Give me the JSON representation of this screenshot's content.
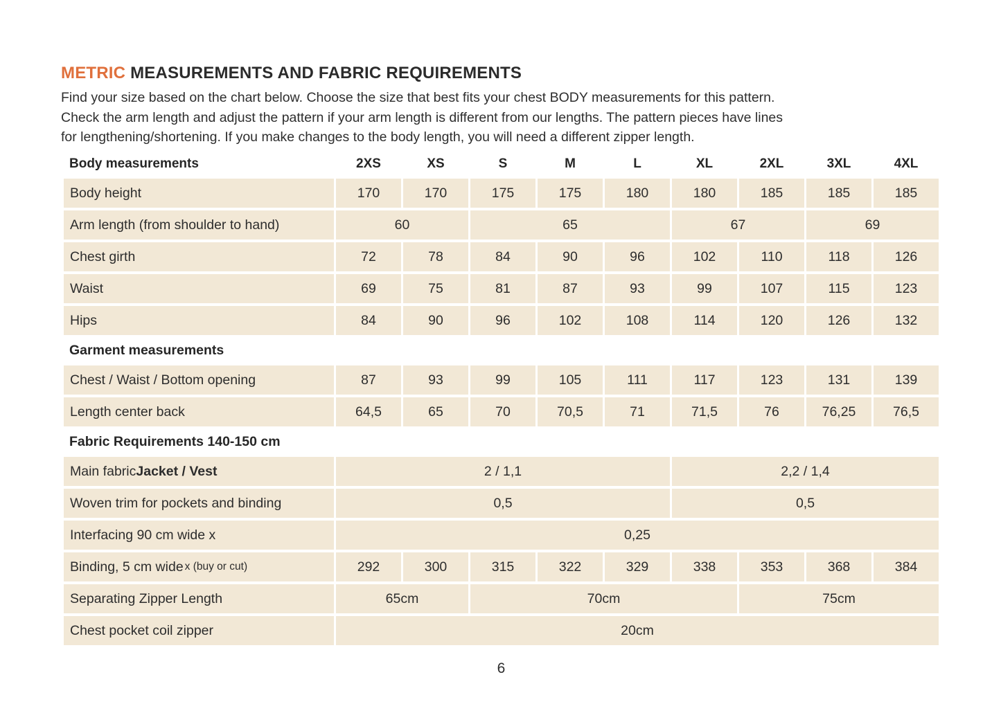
{
  "header": {
    "title_accent": "METRIC",
    "title_rest": " MEASUREMENTS AND FABRIC REQUIREMENTS"
  },
  "intro": {
    "lines": [
      "Find your size based on the chart below. Choose the size that best fits your chest BODY measurements for this pattern.",
      "Check the arm length and adjust the pattern if your arm length is different from our lengths. The pattern pieces have lines",
      "for lengthening/shortening. If you make changes to the body length, you will need a different zipper length."
    ]
  },
  "colors": {
    "accent_orange": "#E0703C",
    "cell_background": "#F2E8D6",
    "text": "#2D2D2D"
  },
  "table": {
    "header": {
      "label": "Body measurements",
      "sizes": [
        "2XS",
        "XS",
        "S",
        "M",
        "L",
        "XL",
        "2XL",
        "3XL",
        "4XL"
      ]
    },
    "rows": [
      {
        "type": "data",
        "label_parts": [
          {
            "text": "Body height"
          }
        ],
        "cells": [
          {
            "text": "170",
            "span": 1
          },
          {
            "text": "170",
            "span": 1
          },
          {
            "text": "175",
            "span": 1
          },
          {
            "text": "175",
            "span": 1
          },
          {
            "text": "180",
            "span": 1
          },
          {
            "text": "180",
            "span": 1
          },
          {
            "text": "185",
            "span": 1
          },
          {
            "text": "185",
            "span": 1
          },
          {
            "text": "185",
            "span": 1
          }
        ]
      },
      {
        "type": "data",
        "label_parts": [
          {
            "text": "Arm length (from shoulder to hand)"
          }
        ],
        "cells": [
          {
            "text": "60",
            "span": 2
          },
          {
            "text": "65",
            "span": 3
          },
          {
            "text": "67",
            "span": 2
          },
          {
            "text": "69",
            "span": 2
          }
        ]
      },
      {
        "type": "data",
        "label_parts": [
          {
            "text": "Chest girth"
          }
        ],
        "cells": [
          {
            "text": "72",
            "span": 1
          },
          {
            "text": "78",
            "span": 1
          },
          {
            "text": "84",
            "span": 1
          },
          {
            "text": "90",
            "span": 1
          },
          {
            "text": "96",
            "span": 1
          },
          {
            "text": "102",
            "span": 1
          },
          {
            "text": "110",
            "span": 1
          },
          {
            "text": "118",
            "span": 1
          },
          {
            "text": "126",
            "span": 1
          }
        ]
      },
      {
        "type": "data",
        "label_parts": [
          {
            "text": "Waist"
          }
        ],
        "cells": [
          {
            "text": "69",
            "span": 1
          },
          {
            "text": "75",
            "span": 1
          },
          {
            "text": "81",
            "span": 1
          },
          {
            "text": "87",
            "span": 1
          },
          {
            "text": "93",
            "span": 1
          },
          {
            "text": "99",
            "span": 1
          },
          {
            "text": "107",
            "span": 1
          },
          {
            "text": "115",
            "span": 1
          },
          {
            "text": "123",
            "span": 1
          }
        ]
      },
      {
        "type": "data",
        "label_parts": [
          {
            "text": "Hips"
          }
        ],
        "cells": [
          {
            "text": "84",
            "span": 1
          },
          {
            "text": "90",
            "span": 1
          },
          {
            "text": "96",
            "span": 1
          },
          {
            "text": "102",
            "span": 1
          },
          {
            "text": "108",
            "span": 1
          },
          {
            "text": "114",
            "span": 1
          },
          {
            "text": "120",
            "span": 1
          },
          {
            "text": "126",
            "span": 1
          },
          {
            "text": "132",
            "span": 1
          }
        ]
      },
      {
        "type": "section",
        "label_parts": [
          {
            "text": "Garment measurements"
          }
        ]
      },
      {
        "type": "data",
        "label_parts": [
          {
            "text": "Chest / Waist / Bottom opening"
          }
        ],
        "cells": [
          {
            "text": "87",
            "span": 1
          },
          {
            "text": "93",
            "span": 1
          },
          {
            "text": "99",
            "span": 1
          },
          {
            "text": "105",
            "span": 1
          },
          {
            "text": "111",
            "span": 1
          },
          {
            "text": "117",
            "span": 1
          },
          {
            "text": "123",
            "span": 1
          },
          {
            "text": "131",
            "span": 1
          },
          {
            "text": "139",
            "span": 1
          }
        ]
      },
      {
        "type": "data",
        "label_parts": [
          {
            "text": "Length center back"
          }
        ],
        "cells": [
          {
            "text": "64,5",
            "span": 1
          },
          {
            "text": "65",
            "span": 1
          },
          {
            "text": "70",
            "span": 1
          },
          {
            "text": "70,5",
            "span": 1
          },
          {
            "text": "71",
            "span": 1
          },
          {
            "text": "71,5",
            "span": 1
          },
          {
            "text": "76",
            "span": 1
          },
          {
            "text": "76,25",
            "span": 1
          },
          {
            "text": "76,5",
            "span": 1
          }
        ]
      },
      {
        "type": "section",
        "label_parts": [
          {
            "text": "Fabric Requirements 140-150 cm"
          }
        ]
      },
      {
        "type": "data",
        "label_parts": [
          {
            "text": "Main fabric "
          },
          {
            "text": "Jacket / Vest",
            "bold": true
          }
        ],
        "cells": [
          {
            "text": "2 / 1,1",
            "span": 5
          },
          {
            "text": "2,2 / 1,4",
            "span": 4
          }
        ]
      },
      {
        "type": "data",
        "label_parts": [
          {
            "text": "Woven trim for pockets and binding"
          }
        ],
        "cells": [
          {
            "text": "0,5",
            "span": 5
          },
          {
            "text": "0,5",
            "span": 4
          }
        ]
      },
      {
        "type": "data",
        "label_parts": [
          {
            "text": "Interfacing  90 cm wide x"
          }
        ],
        "cells": [
          {
            "text": "0,25",
            "span": 9
          }
        ]
      },
      {
        "type": "data",
        "label_parts": [
          {
            "text": "Binding, 5 cm wide "
          },
          {
            "text": "x (buy or cut)",
            "small": true
          }
        ],
        "cells": [
          {
            "text": "292",
            "span": 1
          },
          {
            "text": "300",
            "span": 1
          },
          {
            "text": "315",
            "span": 1
          },
          {
            "text": "322",
            "span": 1
          },
          {
            "text": "329",
            "span": 1
          },
          {
            "text": "338",
            "span": 1
          },
          {
            "text": "353",
            "span": 1
          },
          {
            "text": "368",
            "span": 1
          },
          {
            "text": "384",
            "span": 1
          }
        ]
      },
      {
        "type": "data",
        "label_parts": [
          {
            "text": "Separating Zipper Length"
          }
        ],
        "cells": [
          {
            "text": "65cm",
            "span": 2
          },
          {
            "text": "70cm",
            "span": 4
          },
          {
            "text": "75cm",
            "span": 3
          }
        ]
      },
      {
        "type": "data",
        "label_parts": [
          {
            "text": "Chest pocket coil zipper"
          }
        ],
        "cells": [
          {
            "text": "20cm",
            "span": 9
          }
        ]
      }
    ]
  },
  "footer": {
    "page_number": "6"
  }
}
